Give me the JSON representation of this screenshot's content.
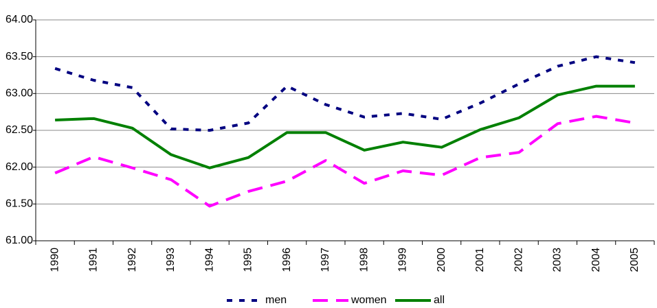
{
  "chart_data": {
    "type": "line",
    "categories": [
      "1990",
      "1991",
      "1992",
      "1993",
      "1994",
      "1995",
      "1996",
      "1997",
      "1998",
      "1999",
      "2000",
      "2001",
      "2002",
      "2003",
      "2004",
      "2005"
    ],
    "series": [
      {
        "name": "men",
        "color": "#000080",
        "values": [
          63.34,
          63.18,
          63.08,
          62.52,
          62.5,
          62.6,
          63.1,
          62.85,
          62.68,
          62.73,
          62.65,
          62.87,
          63.13,
          63.37,
          63.5,
          63.42
        ]
      },
      {
        "name": "women",
        "color": "#ff00ff",
        "values": [
          61.92,
          62.14,
          61.99,
          61.83,
          61.47,
          61.67,
          61.81,
          62.09,
          61.78,
          61.95,
          61.89,
          62.13,
          62.2,
          62.59,
          62.69,
          62.6
        ]
      },
      {
        "name": "all",
        "color": "#008000",
        "values": [
          62.64,
          62.66,
          62.53,
          62.17,
          61.99,
          62.13,
          62.47,
          62.47,
          62.23,
          62.34,
          62.27,
          62.51,
          62.67,
          62.98,
          63.1,
          63.1
        ]
      }
    ],
    "ylim": [
      61,
      64
    ],
    "yticks": [
      {
        "value": 61,
        "label": "61.00"
      },
      {
        "value": 61.5,
        "label": "61.50"
      },
      {
        "value": 62,
        "label": "62.00"
      },
      {
        "value": 62.5,
        "label": "62.50"
      },
      {
        "value": 63,
        "label": "63.00"
      },
      {
        "value": 63.5,
        "label": "63.50"
      },
      {
        "value": 64,
        "label": "64.00"
      }
    ],
    "grid": true,
    "legend": "bottom"
  }
}
